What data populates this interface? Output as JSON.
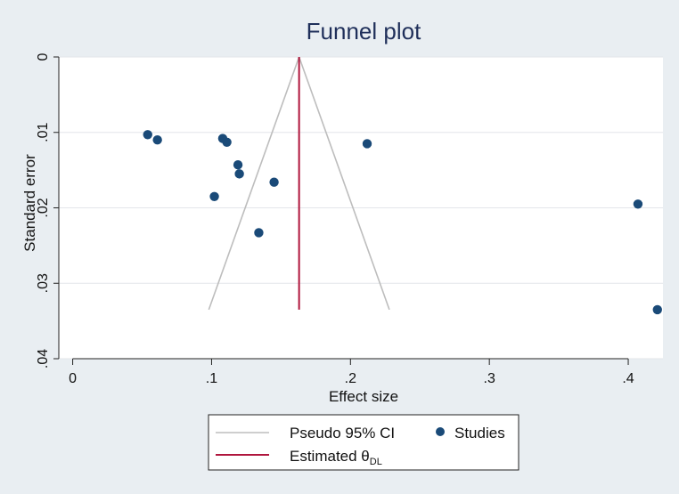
{
  "colors": {
    "background": "#e9eef2",
    "plot_background": "#ffffff",
    "marker": "#1a4a78",
    "ci_line": "#bdbdbd",
    "estimate_line": "#b0163d",
    "title": "#1f2f5a"
  },
  "chart_data": {
    "type": "scatter",
    "title": "Funnel plot",
    "xlabel": "Effect size",
    "ylabel": "Standard error",
    "xlim": [
      -0.01,
      0.425
    ],
    "ylim": [
      0.04,
      0
    ],
    "y_reversed": true,
    "grid": true,
    "x_ticks": [
      {
        "value": 0,
        "label": "0"
      },
      {
        "value": 0.1,
        "label": ".1"
      },
      {
        "value": 0.2,
        "label": ".2"
      },
      {
        "value": 0.3,
        "label": ".3"
      },
      {
        "value": 0.4,
        "label": ".4"
      }
    ],
    "y_ticks": [
      {
        "value": 0,
        "label": "0"
      },
      {
        "value": 0.01,
        "label": ".01"
      },
      {
        "value": 0.02,
        "label": ".02"
      },
      {
        "value": 0.03,
        "label": ".03"
      },
      {
        "value": 0.04,
        "label": ".04"
      }
    ],
    "studies": [
      {
        "x": 0.054,
        "y": 0.0103
      },
      {
        "x": 0.061,
        "y": 0.011
      },
      {
        "x": 0.108,
        "y": 0.0108
      },
      {
        "x": 0.111,
        "y": 0.0113
      },
      {
        "x": 0.119,
        "y": 0.0143
      },
      {
        "x": 0.12,
        "y": 0.0155
      },
      {
        "x": 0.102,
        "y": 0.0185
      },
      {
        "x": 0.145,
        "y": 0.0166
      },
      {
        "x": 0.134,
        "y": 0.0233
      },
      {
        "x": 0.212,
        "y": 0.0115
      },
      {
        "x": 0.407,
        "y": 0.0195
      },
      {
        "x": 0.421,
        "y": 0.0335
      }
    ],
    "estimate": 0.163,
    "pseudo_ci": {
      "apex": [
        0.163,
        0
      ],
      "left_end": [
        0.098,
        0.0335
      ],
      "right_end": [
        0.228,
        0.0335
      ]
    },
    "legend": {
      "placement": "bottom",
      "items": [
        {
          "label": "Pseudo 95% CI",
          "kind": "line",
          "series": "ci"
        },
        {
          "label": "Studies",
          "kind": "marker",
          "series": "studies"
        },
        {
          "label": "Estimated θ",
          "subscript": "DL",
          "kind": "line",
          "series": "estimate"
        }
      ]
    }
  }
}
